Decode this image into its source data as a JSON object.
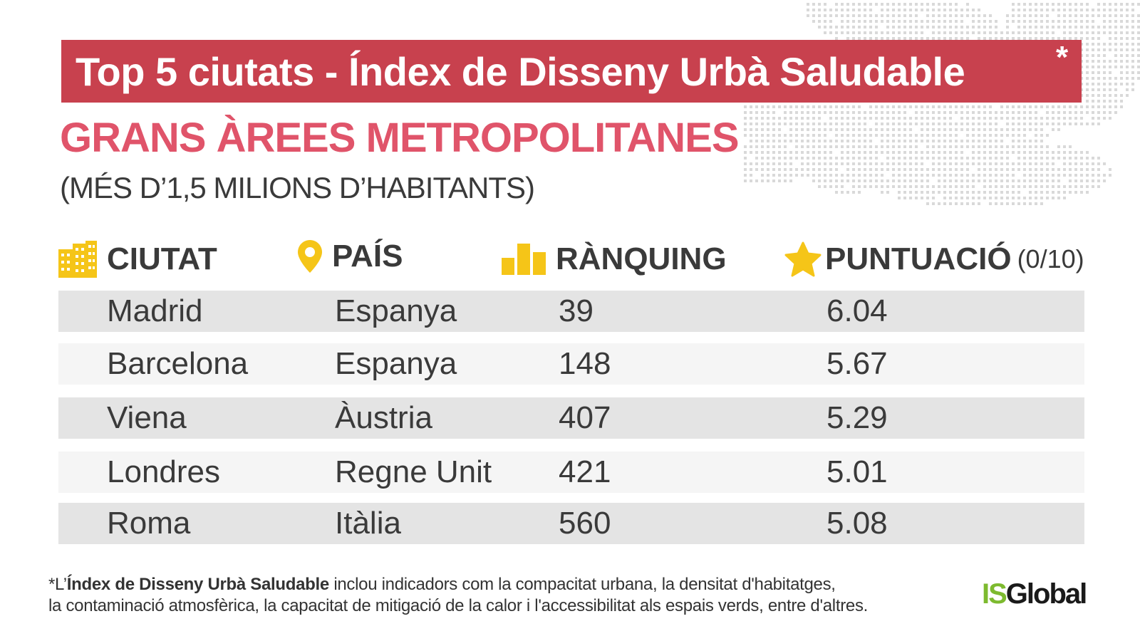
{
  "header": {
    "title": "Top 5 ciutats - Índex de Disseny Urbà Saludable",
    "asterisk": "*",
    "subtitle": "GRANS ÀREES METROPOLITANES",
    "subtitle2": "(MÉS D’1,5 MILIONS D’HABITANTS)"
  },
  "columns": {
    "city": "CIUTAT",
    "country": "PAÍS",
    "rank": "RÀNQUING",
    "score": "PUNTUACIÓ",
    "score_unit": "(0/10)"
  },
  "rows": [
    {
      "city": "Madrid",
      "country": "Espanya",
      "rank": "39",
      "score": "6.04"
    },
    {
      "city": "Barcelona",
      "country": "Espanya",
      "rank": "148",
      "score": "5.67"
    },
    {
      "city": "Viena",
      "country": "Àustria",
      "rank": "407",
      "score": "5.29"
    },
    {
      "city": "Londres",
      "country": "Regne Unit",
      "rank": "421",
      "score": "5.01"
    },
    {
      "city": "Roma",
      "country": "Itàlia",
      "rank": "560",
      "score": "5.08"
    }
  ],
  "footnote": {
    "prefix": "*L’",
    "bold": "Índex de Disseny Urbà Saludable",
    "rest": " inclou indicadors com la compacitat urbana, la densitat d'habitatges,",
    "line2": "la contaminació atmosfèrica, la capacitat de mitigació de la calor i l'accessibilitat als espais verds, entre d'altres."
  },
  "logo": {
    "part1": "IS",
    "part2": "Global"
  },
  "colors": {
    "banner": "#c8414e",
    "subtitle": "#e0546a",
    "icon": "#f5c518",
    "row_shade": "#e4e4e4",
    "row_light": "#f5f5f5",
    "logo_green": "#7dba2f",
    "map_dots": "#d9d9d9"
  },
  "icons": [
    "building-icon",
    "location-pin-icon",
    "bar-chart-icon",
    "star-icon"
  ]
}
